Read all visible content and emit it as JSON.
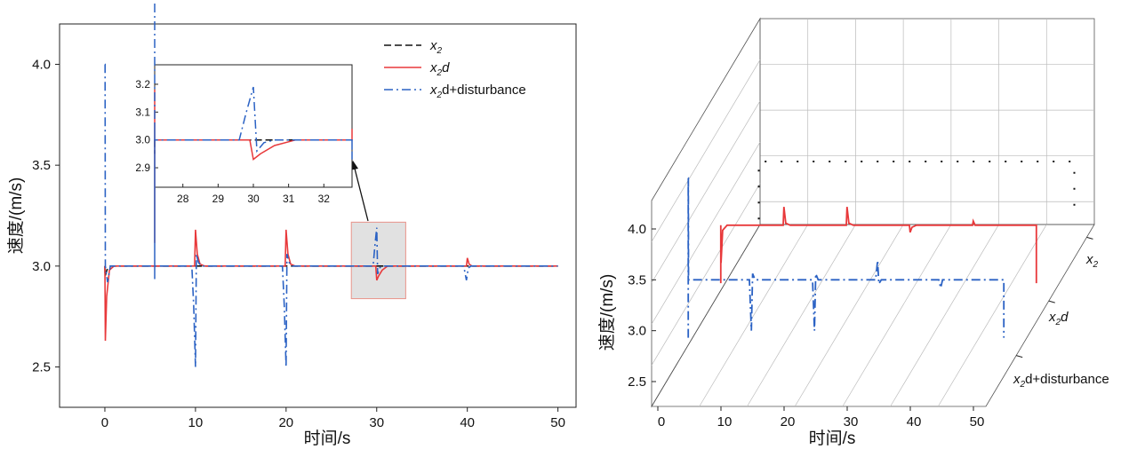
{
  "chart_data": [
    {
      "type": "line",
      "xlabel": "时间/s",
      "ylabel": "速度/(m/s)",
      "xlim": [
        -5,
        52
      ],
      "ylim": [
        2.3,
        4.2
      ],
      "xticks": [
        0,
        10,
        20,
        30,
        40,
        50
      ],
      "yticks": [
        2.5,
        3.0,
        3.5,
        4.0
      ],
      "ytick_labels": [
        "2.5",
        "3.0",
        "3.5",
        "4.0"
      ],
      "legend_position": "top-right",
      "series": [
        {
          "name": "x2",
          "legend_label": "x",
          "legend_sub": "2",
          "legend_suffix": "",
          "color": "#111111",
          "dash": "8,4",
          "x": [
            0,
            0.02,
            0.3,
            0.6,
            50
          ],
          "y": [
            3.0,
            2.95,
            2.99,
            3.0,
            3.0
          ]
        },
        {
          "name": "x2d",
          "legend_label": "x",
          "legend_sub": "2",
          "legend_suffix": "d",
          "color": "#e8393b",
          "dash": "",
          "x": [
            0,
            0.05,
            0.2,
            0.5,
            1.0,
            9.9,
            10.0,
            10.2,
            10.5,
            11.0,
            19.9,
            20.0,
            20.2,
            20.5,
            21.0,
            29.9,
            30.0,
            30.2,
            30.6,
            31.2,
            39.9,
            40.0,
            40.2,
            40.5,
            50
          ],
          "y": [
            3.0,
            2.63,
            2.85,
            2.98,
            3.0,
            3.0,
            3.18,
            3.06,
            3.01,
            3.0,
            3.0,
            3.18,
            3.06,
            3.01,
            3.0,
            3.0,
            2.93,
            2.95,
            2.98,
            3.0,
            3.0,
            3.04,
            3.01,
            3.0,
            3.0
          ]
        },
        {
          "name": "x2d+disturbance",
          "legend_label": "x",
          "legend_sub": "2",
          "legend_suffix": "d+disturbance",
          "color": "#2b62c4",
          "dash": "10,4,2,4",
          "x": [
            0,
            0.02,
            0.05,
            0.3,
            0.6,
            9.6,
            9.8,
            10.0,
            10.1,
            10.3,
            10.6,
            19.6,
            19.8,
            20.0,
            20.1,
            20.3,
            20.6,
            29.6,
            29.8,
            30.0,
            30.1,
            30.3,
            30.6,
            39.6,
            39.9,
            40.1,
            40.4,
            50
          ],
          "y": [
            4.0,
            4.0,
            3.0,
            2.92,
            3.0,
            3.0,
            2.8,
            2.5,
            3.06,
            3.02,
            3.0,
            3.0,
            2.8,
            2.5,
            3.06,
            3.02,
            3.0,
            3.0,
            3.1,
            3.19,
            2.96,
            2.99,
            3.0,
            3.0,
            2.93,
            2.99,
            3.0,
            3.0
          ]
        }
      ],
      "inset": {
        "xlim": [
          27.2,
          32.8
        ],
        "ylim": [
          2.83,
          3.27
        ],
        "xticks": [
          28,
          29,
          30,
          31,
          32
        ],
        "yticks": [
          2.9,
          3.0,
          3.1,
          3.2
        ],
        "ytick_labels": [
          "2.9",
          "3.0",
          "3.1",
          "3.2"
        ],
        "zoom_region": {
          "x": [
            27.2,
            33.2
          ],
          "y": [
            2.9,
            3.2
          ]
        }
      }
    },
    {
      "type": "line3d",
      "xlabel": "时间/s",
      "ylabel": "速度/(m/s)",
      "xticks": [
        0,
        10,
        20,
        30,
        40,
        50
      ],
      "yticks": [
        2.5,
        3.0,
        3.5,
        4.0
      ],
      "ytick_labels": [
        "2.5",
        "3.0",
        "3.5",
        "4.0"
      ],
      "depth_labels": [
        {
          "label": "x",
          "sub": "2",
          "suffix": ""
        },
        {
          "label": "x",
          "sub": "2",
          "suffix": "d"
        },
        {
          "label": "x",
          "sub": "2",
          "suffix": "d+disturbance"
        }
      ],
      "series": [
        {
          "name": "x2",
          "color": "#111111",
          "style": "dotted",
          "x": [
            0,
            50
          ],
          "y": [
            3.0,
            3.0
          ]
        },
        {
          "name": "x2d",
          "color": "#e8393b",
          "style": "solid",
          "x": [
            0,
            0.05,
            0.3,
            1,
            9.9,
            10,
            10.3,
            11,
            19.9,
            20,
            20.3,
            21,
            29.9,
            30,
            30.3,
            31,
            39.9,
            40,
            40.3,
            50
          ],
          "y": [
            3.0,
            2.63,
            2.95,
            3.0,
            3.0,
            3.18,
            3.02,
            3.0,
            3.0,
            3.18,
            3.02,
            3.0,
            3.0,
            2.93,
            2.98,
            3.0,
            3.0,
            3.04,
            3.0,
            3.0
          ]
        },
        {
          "name": "x2d+disturbance",
          "color": "#2b62c4",
          "style": "dashdot",
          "x": [
            0,
            0.02,
            0.05,
            0.5,
            9.7,
            10,
            10.2,
            10.6,
            19.7,
            20,
            20.2,
            20.6,
            29.7,
            30,
            30.2,
            30.6,
            39.7,
            40,
            40.3,
            50
          ],
          "y": [
            4.0,
            4.0,
            3.0,
            3.0,
            3.0,
            2.5,
            3.06,
            3.0,
            3.0,
            2.5,
            3.06,
            3.0,
            3.0,
            3.19,
            2.96,
            3.0,
            3.0,
            2.92,
            3.0,
            3.0
          ]
        }
      ]
    }
  ]
}
